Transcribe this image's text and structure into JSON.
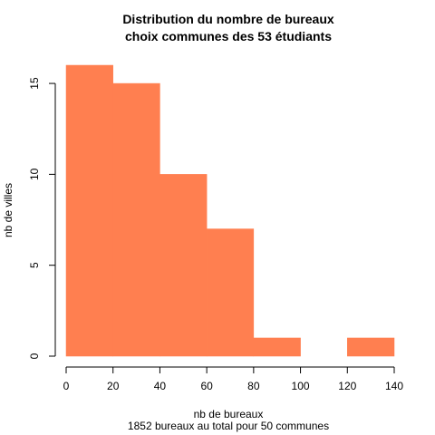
{
  "chart_data": {
    "type": "bar",
    "title": [
      "Distribution du nombre de bureaux",
      "choix communes des 53 étudiants"
    ],
    "xlabel": "nb de bureaux",
    "subtitle": "1852 bureaux au total pour 50 communes",
    "ylabel": "nb de villes",
    "bar_color": "#FF7F50",
    "bins": [
      {
        "from": 0,
        "to": 20,
        "count": 16
      },
      {
        "from": 20,
        "to": 40,
        "count": 15
      },
      {
        "from": 40,
        "to": 60,
        "count": 10
      },
      {
        "from": 60,
        "to": 80,
        "count": 7
      },
      {
        "from": 80,
        "to": 100,
        "count": 1
      },
      {
        "from": 100,
        "to": 120,
        "count": 0
      },
      {
        "from": 120,
        "to": 140,
        "count": 1
      }
    ],
    "xlim": [
      0,
      140
    ],
    "ylim": [
      0,
      16
    ],
    "x_ticks": [
      "0",
      "20",
      "40",
      "60",
      "80",
      "100",
      "120",
      "140"
    ],
    "y_ticks": [
      "0",
      "5",
      "10",
      "15"
    ]
  }
}
